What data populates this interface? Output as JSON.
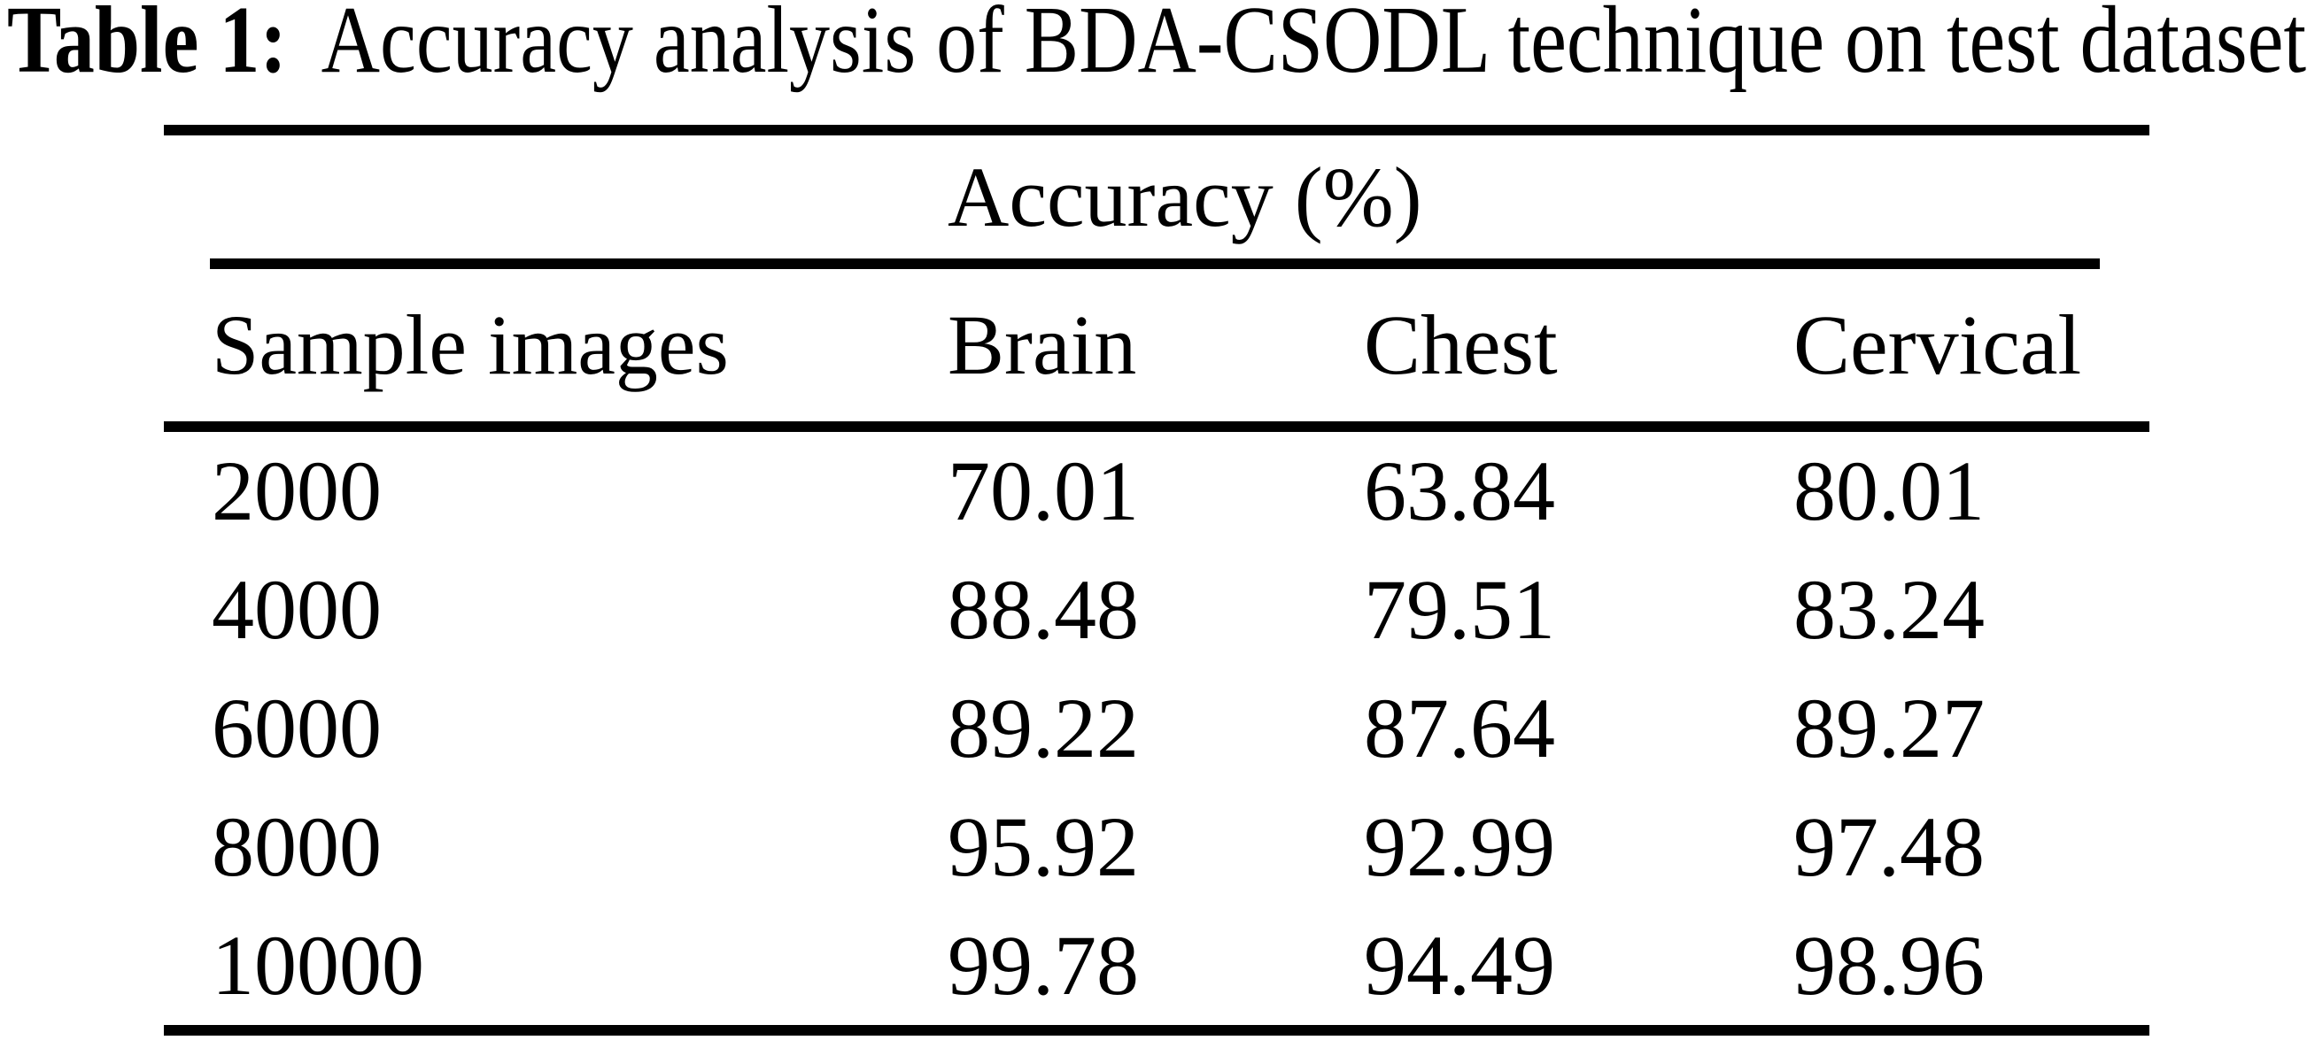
{
  "caption": {
    "label": "Table 1:",
    "text": "Accuracy analysis of BDA-CSODL technique on test dataset"
  },
  "table": {
    "span_header": "Accuracy (%)",
    "columns": [
      "Sample images",
      "Brain",
      "Chest",
      "Cervical"
    ],
    "rows": [
      [
        "2000",
        "70.01",
        "63.84",
        "80.01"
      ],
      [
        "4000",
        "88.48",
        "79.51",
        "83.24"
      ],
      [
        "6000",
        "89.22",
        "87.64",
        "89.27"
      ],
      [
        "8000",
        "95.92",
        "92.99",
        "97.48"
      ],
      [
        "10000",
        "99.78",
        "94.49",
        "98.96"
      ]
    ],
    "colors": {
      "text": "#000000",
      "background": "#ffffff",
      "rule": "#000000"
    }
  }
}
